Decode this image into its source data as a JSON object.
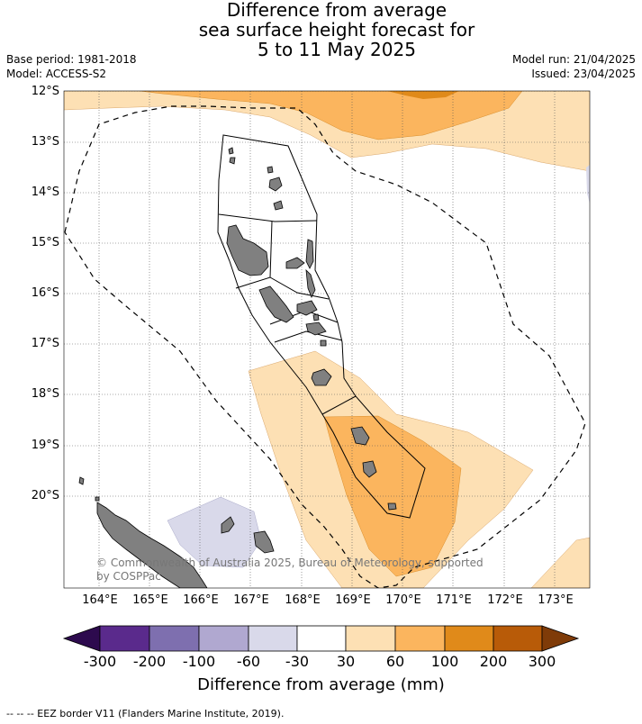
{
  "title": {
    "line1": "Difference from average",
    "line2": "sea surface height forecast for",
    "line3": "5 to 11 May 2025"
  },
  "meta": {
    "base_period": "Base period: 1981-2018",
    "model": "Model: ACCESS-S2",
    "model_run": "Model run: 21/04/2025",
    "issued": "Issued: 23/04/2025"
  },
  "axes": {
    "lat_labels": [
      "12°S",
      "13°S",
      "14°S",
      "15°S",
      "16°S",
      "17°S",
      "18°S",
      "19°S",
      "20°S"
    ],
    "lon_labels": [
      "164°E",
      "165°E",
      "166°E",
      "167°E",
      "168°E",
      "169°E",
      "170°E",
      "171°E",
      "172°E",
      "173°E"
    ]
  },
  "credit": {
    "line1": "© Commonwealth of Australia 2025, Bureau of Meteorology, supported",
    "line2": "by COSPPac"
  },
  "colorbar": {
    "labels": [
      "-300",
      "-200",
      "-100",
      "-60",
      "-30",
      "30",
      "60",
      "100",
      "200",
      "300"
    ],
    "title": "Difference from average (mm)",
    "colors": {
      "below_min": "#2d0a4e",
      "neg_300_200": "#5a2a8c",
      "neg_200_100": "#7e6faf",
      "neg_100_60": "#b0a8d0",
      "neg_60_30": "#d9d9ea",
      "neutral": "#ffffff",
      "pos_30_60": "#fde0b4",
      "pos_60_100": "#fbb55e",
      "pos_100_200": "#e08a1a",
      "pos_200_300": "#b85b08",
      "above_max": "#7f3b08"
    }
  },
  "footnote": "-- -- -- EEZ border V11 (Flanders Marine Institute, 2019)."
}
